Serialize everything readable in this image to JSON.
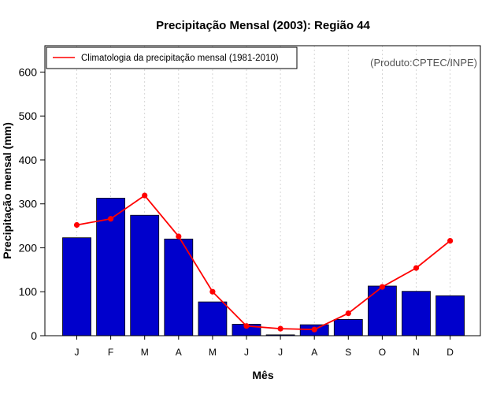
{
  "chart_data": {
    "type": "bar",
    "title": "Precipitação Mensal (2003): Região 44",
    "xlabel": "Mês",
    "ylabel": "Precipitação mensal (mm)",
    "categories": [
      "J",
      "F",
      "M",
      "A",
      "M",
      "J",
      "J",
      "A",
      "S",
      "O",
      "N",
      "D"
    ],
    "ylim": [
      0,
      660
    ],
    "yticks": [
      0,
      100,
      200,
      300,
      400,
      500,
      600
    ],
    "grid": "vertical dotted",
    "series": [
      {
        "name": "Precipitação mensal (2003)",
        "type": "bar",
        "color": "#0000cc",
        "values": [
          223,
          313,
          274,
          220,
          77,
          26,
          2,
          25,
          37,
          113,
          101,
          91
        ]
      },
      {
        "name": "Climatologia da precipitação mensal (1981-2010)",
        "type": "line",
        "color": "#ff0000",
        "values": [
          252,
          266,
          319,
          226,
          100,
          22,
          16,
          14,
          51,
          111,
          154,
          216
        ]
      }
    ],
    "legend": {
      "position": "top-left",
      "entries": [
        "Climatologia da precipitação mensal (1981-2010)"
      ]
    },
    "annotation": "(Produto:CPTEC/INPE)"
  }
}
